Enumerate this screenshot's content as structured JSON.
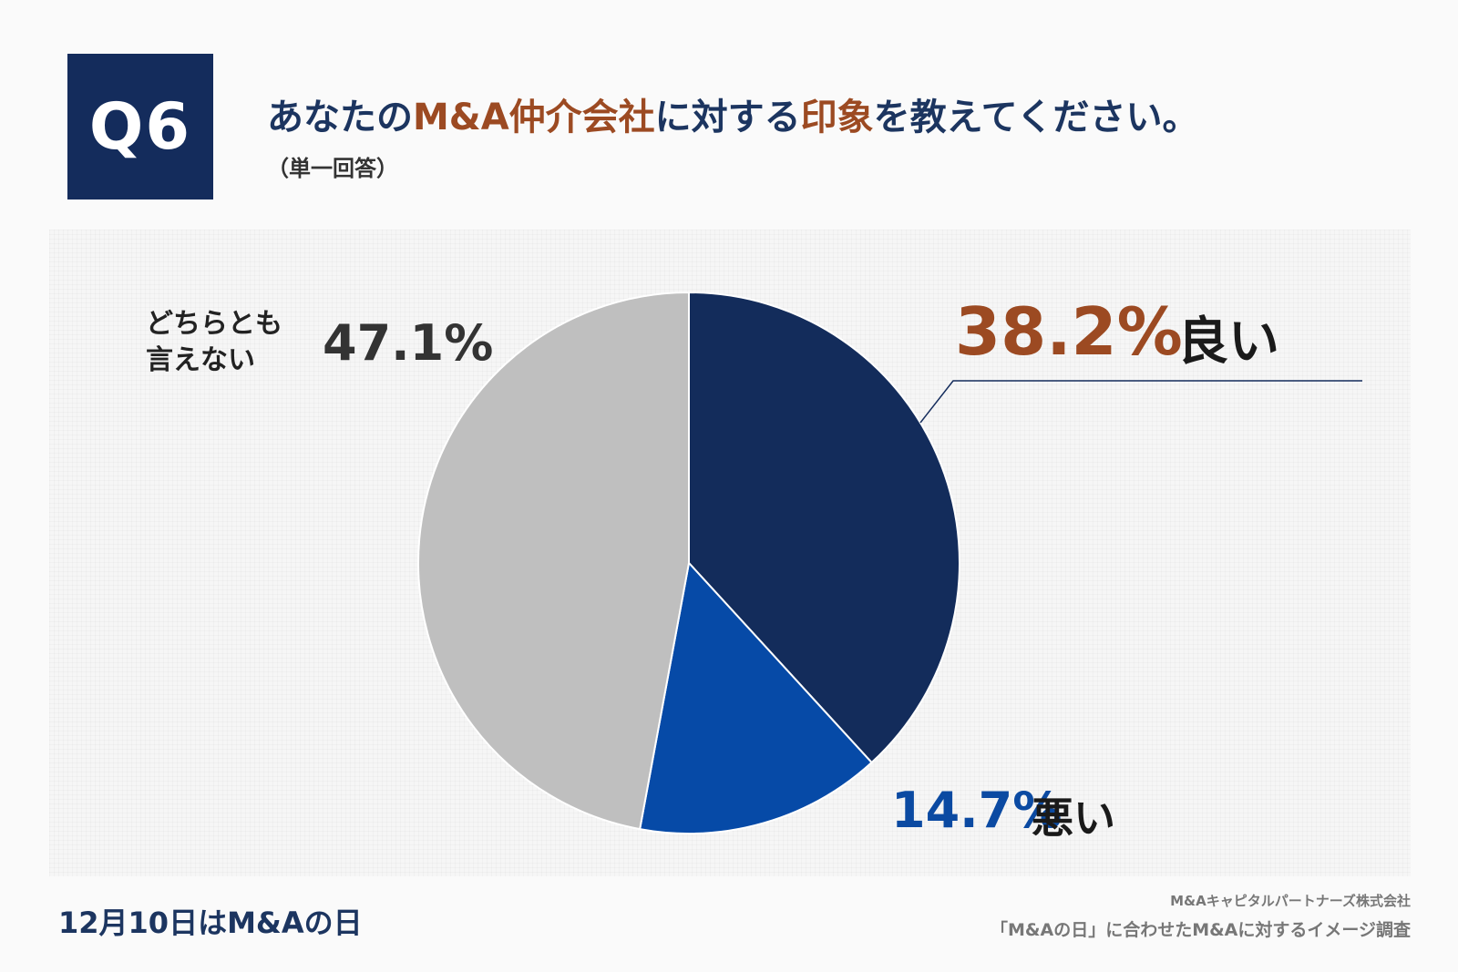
{
  "header": {
    "badge": "Q6",
    "question_part1": "あなたの",
    "question_highlight1": "M&A仲介会社",
    "question_part2": "に対する",
    "question_highlight2": "印象",
    "question_part3": "を教えてください。",
    "subtext": "（単一回答）"
  },
  "chart_data": {
    "type": "pie",
    "title": "あなたのM&A仲介会社に対する印象を教えてください。",
    "slices": [
      {
        "label": "良い",
        "value": 38.2,
        "display": "38.2%",
        "color": "#132c5b"
      },
      {
        "label": "悪い",
        "value": 14.7,
        "display": "14.7%",
        "color": "#064aa7"
      },
      {
        "label": "どちらとも言えない",
        "value": 47.1,
        "display": "47.1%",
        "color": "#bfbfbf"
      }
    ],
    "start_angle_deg": 0,
    "direction": "clockwise"
  },
  "labels": {
    "good_name": "良い",
    "good_pct": "38.2%",
    "bad_name": "悪い",
    "bad_pct": "14.7%",
    "neutral_name": "どちらとも言えない",
    "neutral_pct": "47.1%"
  },
  "footer": {
    "left": "12月10日はM&Aの日",
    "company": "M&Aキャピタルパートナーズ株式会社",
    "survey": "「M&Aの日」に合わせたM&Aに対するイメージ調査"
  }
}
